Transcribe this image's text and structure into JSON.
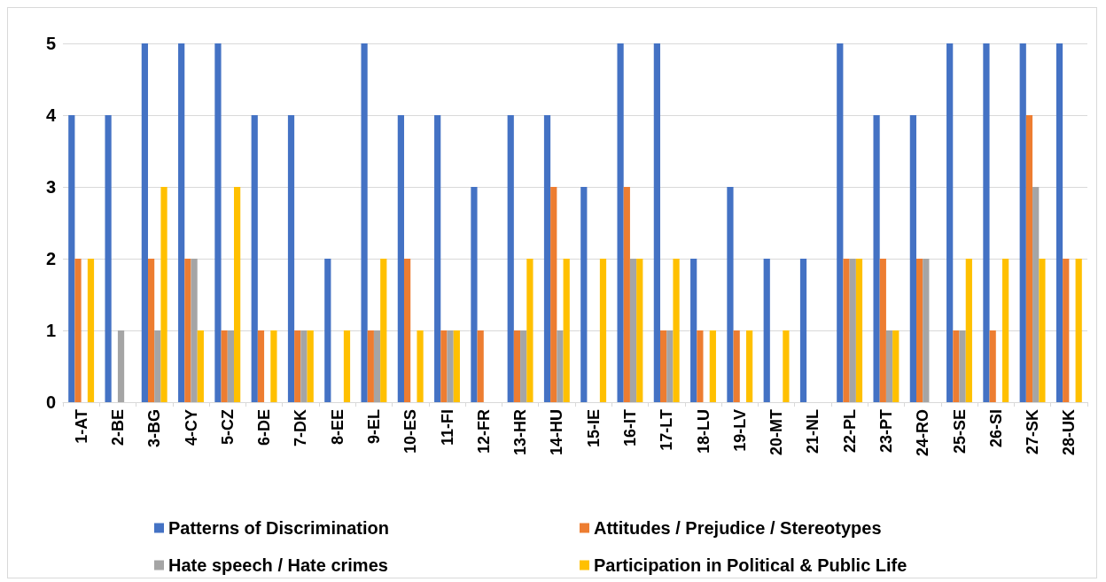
{
  "chart_data": {
    "type": "bar",
    "categories": [
      "1-AT",
      "2-BE",
      "3-BG",
      "4-CY",
      "5-CZ",
      "6-DE",
      "7-DK",
      "8-EE",
      "9-EL",
      "10-ES",
      "11-FI",
      "12-FR",
      "13-HR",
      "14-HU",
      "15-IE",
      "16-IT",
      "17-LT",
      "18-LU",
      "19-LV",
      "20-MT",
      "21-NL",
      "22-PL",
      "23-PT",
      "24-RO",
      "25-SE",
      "26-SI",
      "27-SK",
      "28-UK"
    ],
    "series": [
      {
        "name": "Patterns of Discrimination",
        "color": "#4472c4",
        "values": [
          4,
          4,
          5,
          5,
          5,
          4,
          4,
          2,
          5,
          4,
          4,
          3,
          4,
          4,
          3,
          5,
          5,
          2,
          3,
          2,
          2,
          5,
          4,
          4,
          5,
          5,
          5,
          5
        ]
      },
      {
        "name": "Attitudes / Prejudice / Stereotypes",
        "color": "#ed7d31",
        "values": [
          2,
          0,
          2,
          2,
          1,
          1,
          1,
          0,
          1,
          2,
          1,
          1,
          1,
          3,
          0,
          3,
          1,
          1,
          1,
          0,
          0,
          2,
          2,
          2,
          1,
          1,
          4,
          2
        ]
      },
      {
        "name": "Hate speech / Hate crimes",
        "color": "#a5a5a5",
        "values": [
          0,
          1,
          1,
          2,
          1,
          0,
          1,
          0,
          1,
          0,
          1,
          0,
          1,
          1,
          0,
          2,
          1,
          0,
          0,
          0,
          0,
          2,
          1,
          2,
          1,
          0,
          3,
          0
        ]
      },
      {
        "name": "Participation in Political & Public Life",
        "color": "#ffc000",
        "values": [
          2,
          0,
          3,
          1,
          3,
          1,
          1,
          1,
          2,
          1,
          1,
          0,
          2,
          2,
          2,
          2,
          2,
          1,
          1,
          1,
          0,
          2,
          1,
          0,
          2,
          2,
          2,
          2
        ]
      }
    ],
    "ylim": [
      0,
      5
    ],
    "yticks": [
      0,
      1,
      2,
      3,
      4,
      5
    ],
    "grid": "y",
    "legend": "bottom"
  }
}
